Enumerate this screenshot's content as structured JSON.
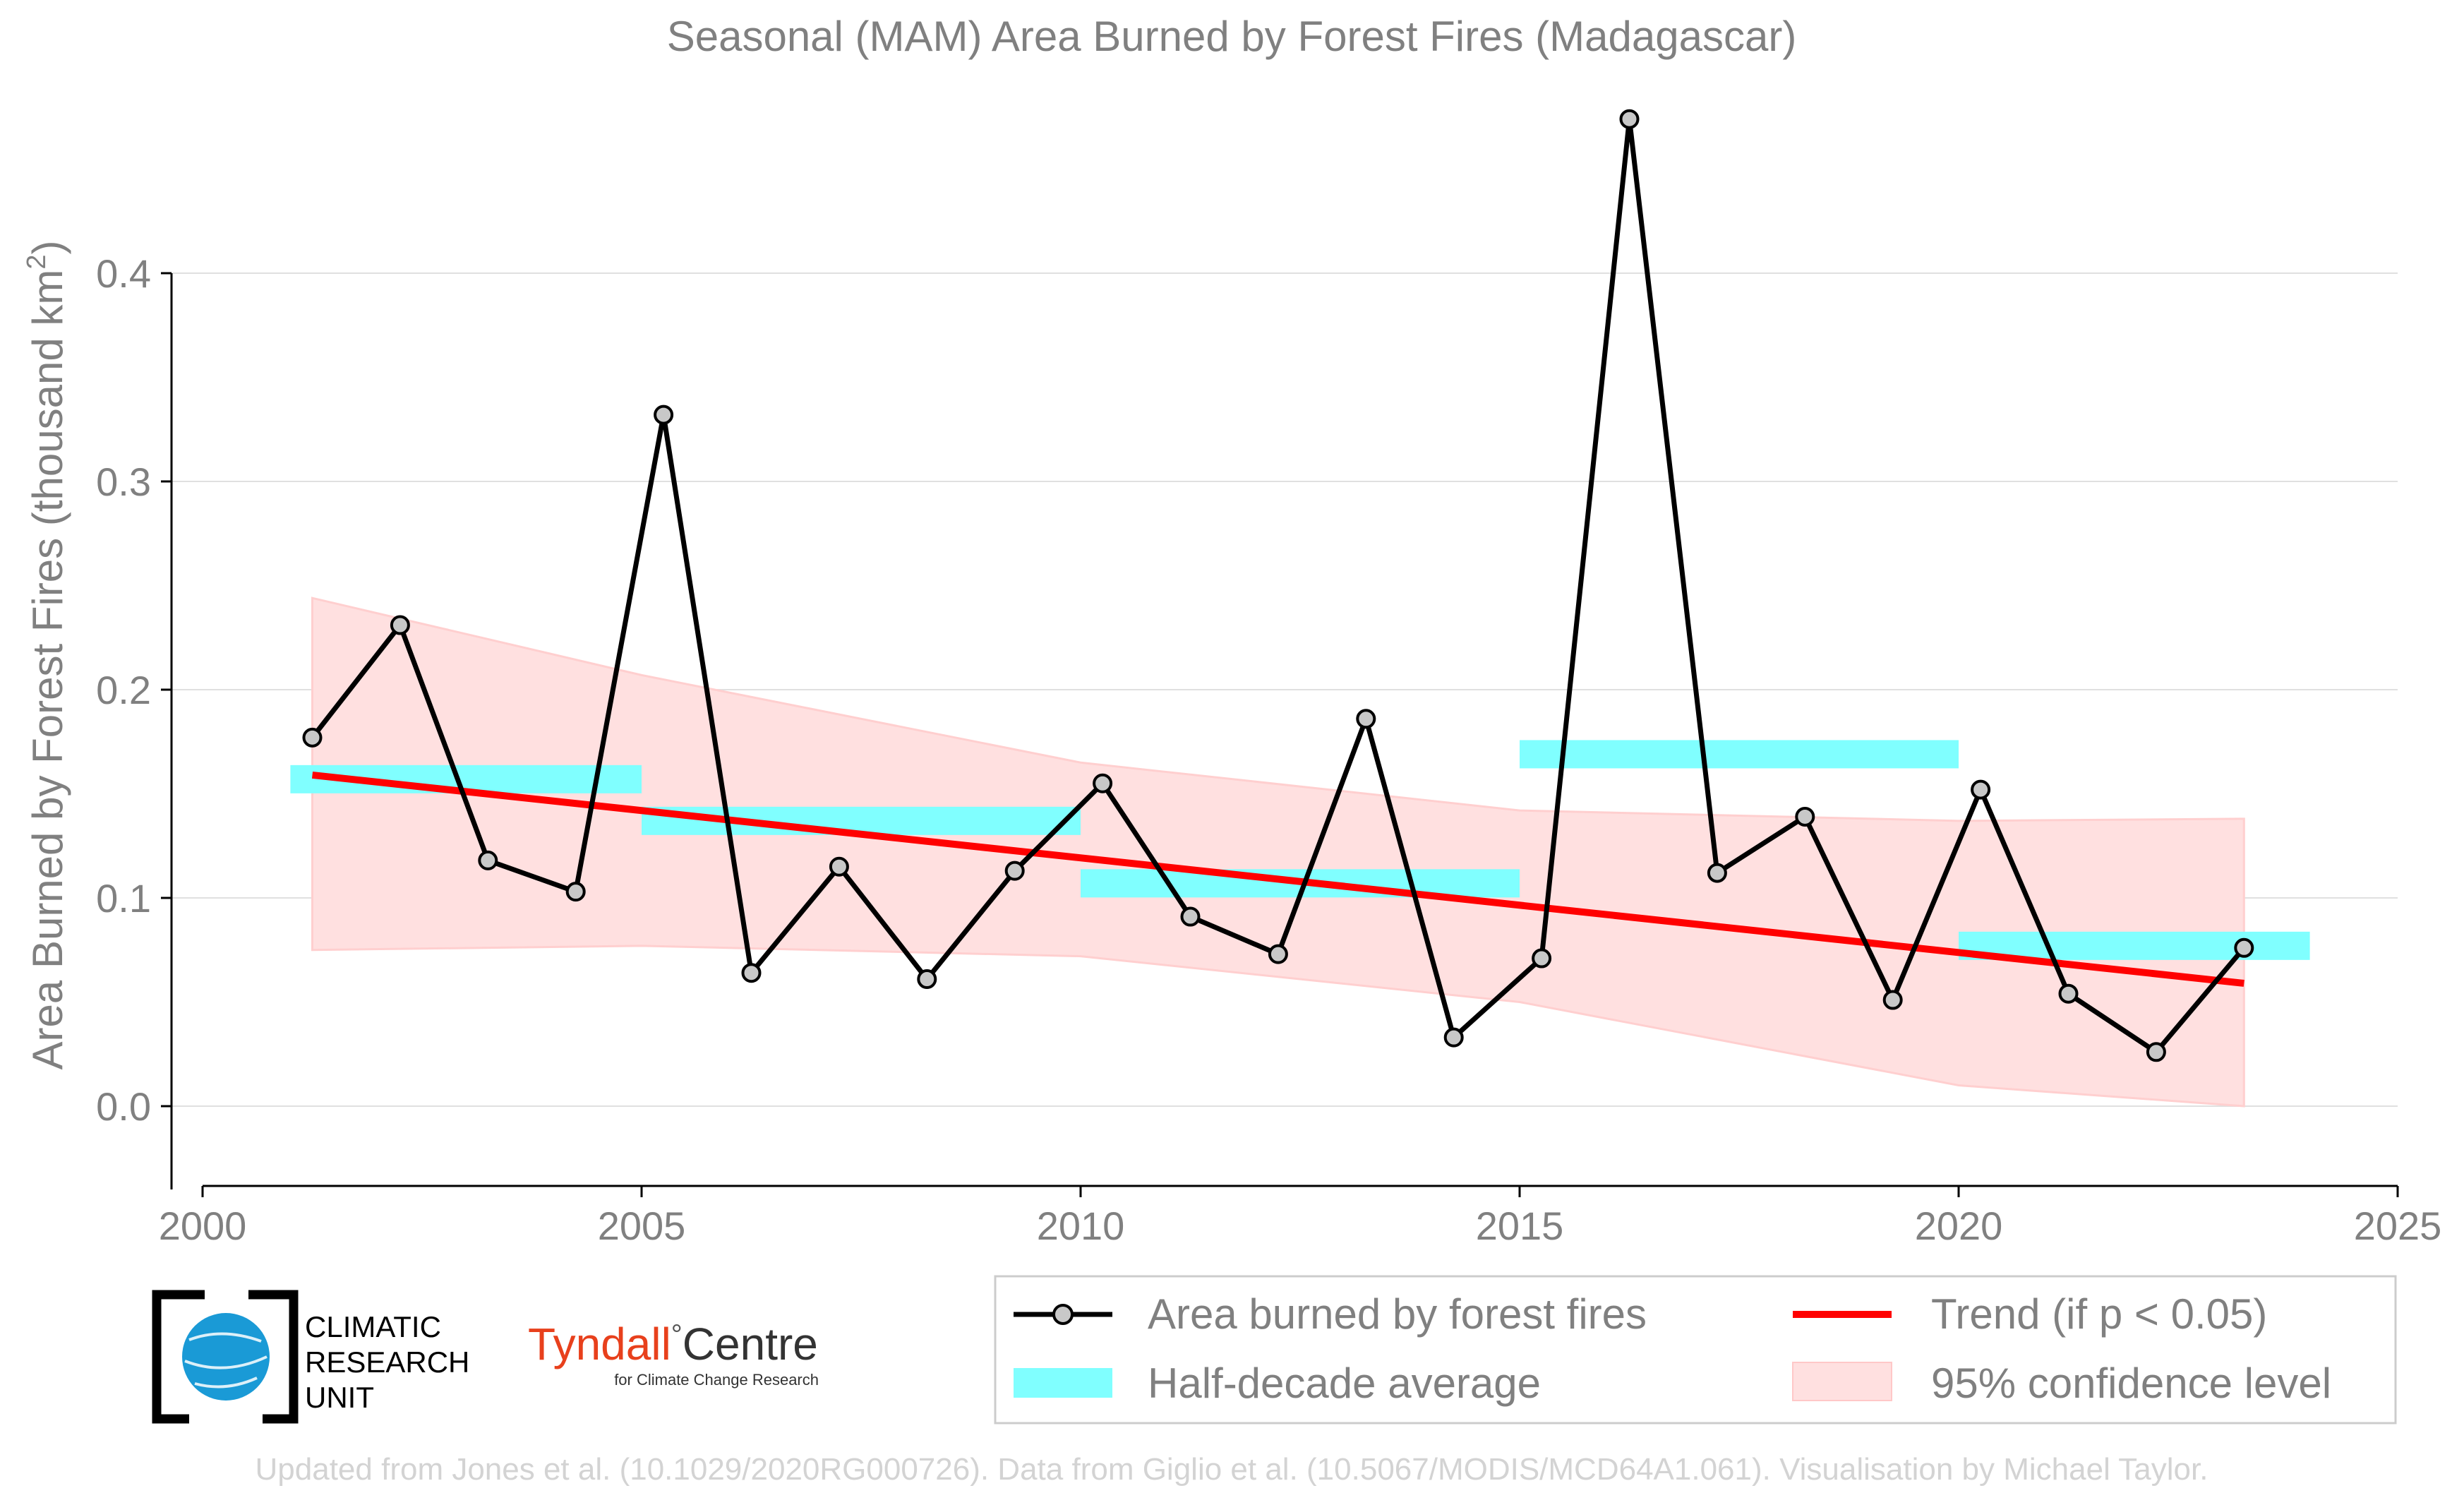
{
  "chart_data": {
    "type": "line",
    "title": "Seasonal (MAM) Area Burned by Forest Fires (Madagascar)",
    "xlabel": "",
    "ylabel": "Area Burned by Forest Fires (thousand km",
    "ylabel_sup": "2",
    "ylabel_end": ")",
    "xlim": [
      2000,
      2025
    ],
    "ylim": [
      -0.04,
      0.48
    ],
    "x_ticks": [
      "2000",
      "2005",
      "2010",
      "2015",
      "2020",
      "2025"
    ],
    "y_ticks": [
      "0.0",
      "0.1",
      "0.2",
      "0.3",
      "0.4"
    ],
    "grid": "horizontal",
    "legend_position": "bottom-right",
    "series": [
      {
        "name": "Area burned by forest fires",
        "color": "#000000",
        "marker_color": "#c8c8c8",
        "x": [
          2001.25,
          2002.25,
          2003.25,
          2004.25,
          2005.25,
          2006.25,
          2007.25,
          2008.25,
          2009.25,
          2010.25,
          2011.25,
          2012.25,
          2013.25,
          2014.25,
          2015.25,
          2016.25,
          2017.25,
          2018.25,
          2019.25,
          2020.25,
          2021.25,
          2022.25,
          2023.25
        ],
        "values": [
          0.177,
          0.231,
          0.118,
          0.103,
          0.332,
          0.064,
          0.115,
          0.061,
          0.113,
          0.155,
          0.091,
          0.073,
          0.186,
          0.033,
          0.071,
          0.474,
          0.112,
          0.139,
          0.051,
          0.152,
          0.054,
          0.026,
          0.076
        ]
      }
    ],
    "half_decade_average": {
      "name": "Half-decade average",
      "color": "#80ffff",
      "segments": [
        {
          "x_start": 2001.0,
          "x_end": 2005.0,
          "value": 0.157
        },
        {
          "x_start": 2005.0,
          "x_end": 2010.0,
          "value": 0.137
        },
        {
          "x_start": 2010.0,
          "x_end": 2015.0,
          "value": 0.107
        },
        {
          "x_start": 2015.0,
          "x_end": 2020.0,
          "value": 0.169
        },
        {
          "x_start": 2020.0,
          "x_end": 2024.0,
          "value": 0.077
        }
      ]
    },
    "trend": {
      "name": "Trend (if p < 0.05)",
      "color": "#ff0000",
      "x": [
        2001.25,
        2023.25
      ],
      "values": [
        0.159,
        0.059
      ]
    },
    "confidence": {
      "name": "95% confidence level",
      "color": "#ffd6d6",
      "x": [
        2001.25,
        2005,
        2010,
        2015,
        2020,
        2023.25
      ],
      "upper": [
        0.244,
        0.207,
        0.165,
        0.142,
        0.137,
        0.138
      ],
      "lower": [
        0.075,
        0.077,
        0.072,
        0.05,
        0.01,
        -0.012
      ]
    },
    "credit": "Updated from Jones et al. (10.1029/2020RG000726). Data from Giglio et al. (10.5067/MODIS/MCD64A1.061). Visualisation by Michael Taylor."
  },
  "logos": {
    "cru_line1": "CLIMATIC",
    "cru_line2": "RESEARCH",
    "cru_line3": "UNIT",
    "tyndall_name": "Tyndall",
    "tyndall_centre": "Centre",
    "tyndall_sub": "for Climate Change Research"
  }
}
